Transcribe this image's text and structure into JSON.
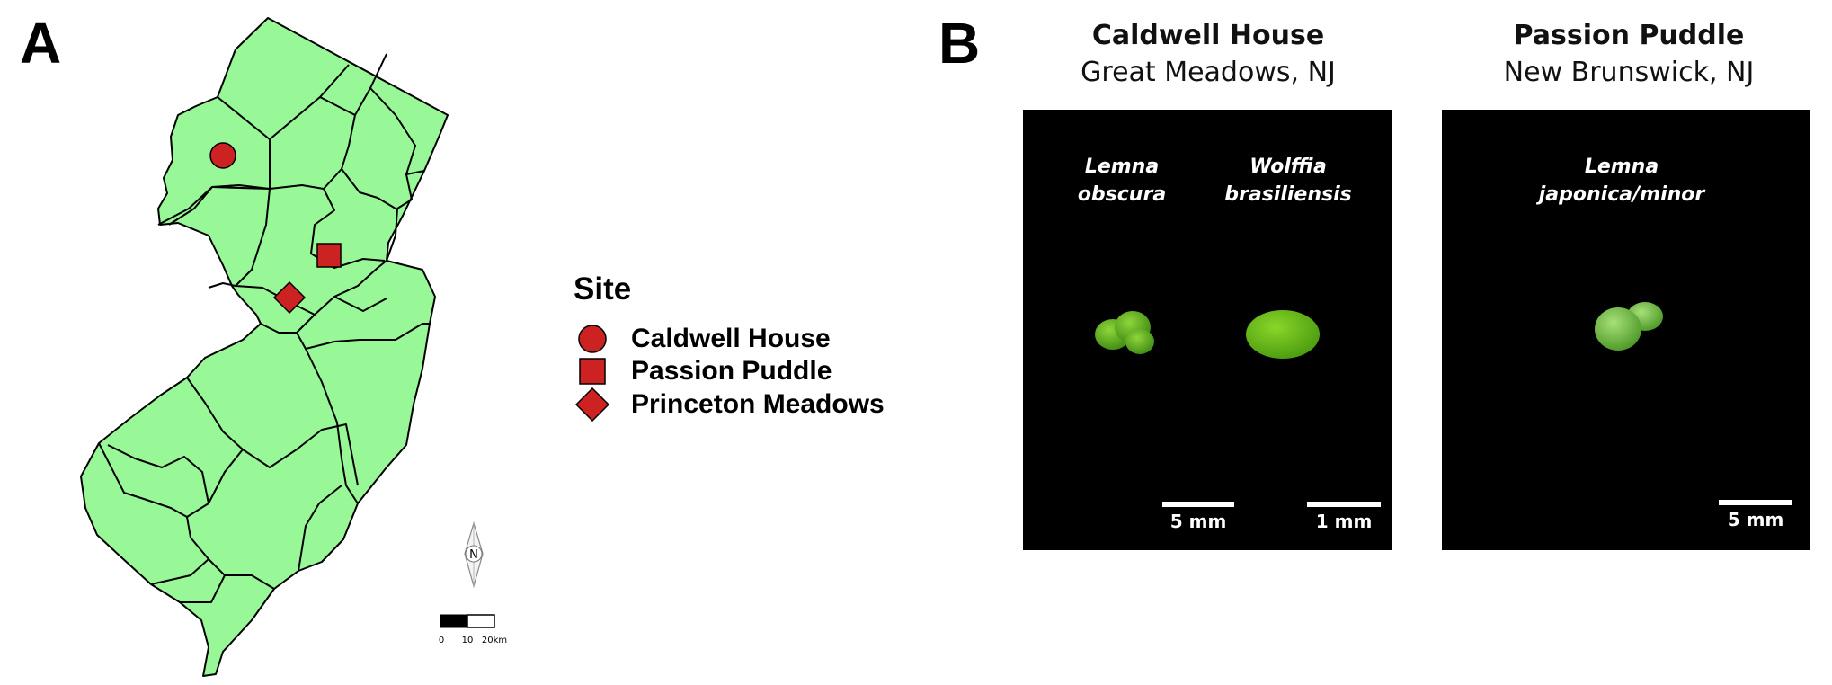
{
  "panel_a": {
    "letter": "A"
  },
  "panel_b": {
    "letter": "B"
  },
  "legend": {
    "title": "Site",
    "entries": [
      {
        "label": "Caldwell House",
        "shape": "circle"
      },
      {
        "label": "Passion Puddle",
        "shape": "square"
      },
      {
        "label": "Princeton Meadows",
        "shape": "diamond"
      }
    ]
  },
  "colors": {
    "land": "#98f898",
    "border": "#000000",
    "marker": "#cc2222",
    "photo_bg": "#000000"
  },
  "map": {
    "north_arrow_letter": "N",
    "scale_bar": {
      "labels": [
        "0",
        "10",
        "20km"
      ]
    }
  },
  "sites": [
    {
      "name": "Caldwell House",
      "location": "Great Meadows, NJ",
      "species": [
        {
          "line1": "Lemna",
          "line2": "obscura",
          "scale": "5 mm"
        },
        {
          "line1": "Wolffia",
          "line2": "brasiliensis",
          "scale": "1 mm"
        }
      ]
    },
    {
      "name": "Passion Puddle",
      "location": "New Brunswick, NJ",
      "species": [
        {
          "line1": "Lemna",
          "line2": "japonica/minor",
          "scale": "5 mm"
        }
      ]
    }
  ]
}
